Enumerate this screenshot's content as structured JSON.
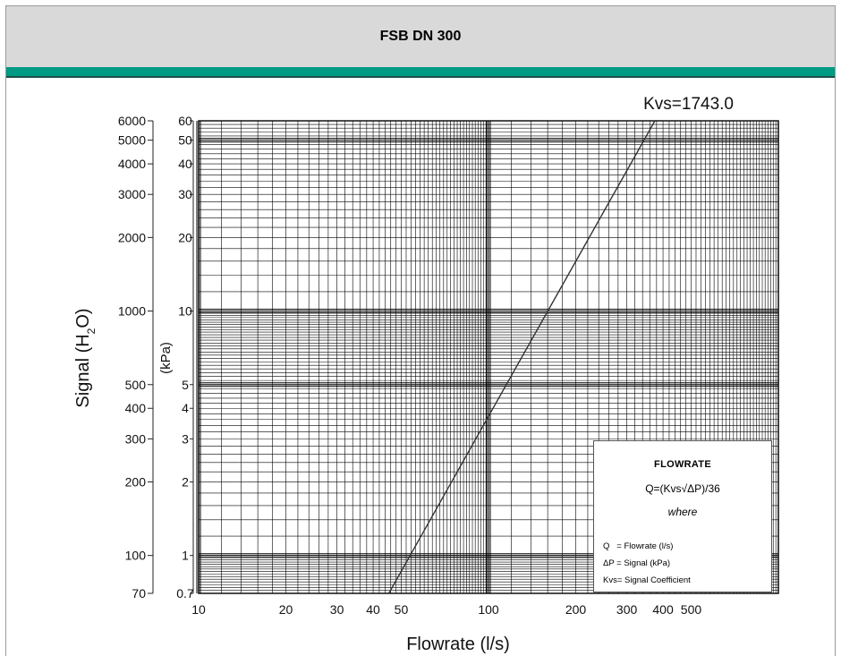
{
  "header": {
    "title": "FSB DN 300"
  },
  "colors": {
    "accent": "#009a84",
    "header_bg": "#d9d9d9",
    "grid": "#000000"
  },
  "chart_data": {
    "type": "line",
    "title": "",
    "annotation": "Kvs=1743.0",
    "xlabel": "Flowrate (l/s)",
    "ylabel_outer": "Signal (H2O)",
    "ylabel_inner": "(kPa)",
    "x_scale": "log",
    "y_scale": "log",
    "xlim": [
      10,
      1000
    ],
    "ylim_kpa": [
      0.7,
      60
    ],
    "grid": true,
    "x_ticks": [
      {
        "value": 10,
        "label": "10"
      },
      {
        "value": 20,
        "label": "20"
      },
      {
        "value": 30,
        "label": "30"
      },
      {
        "value": 40,
        "label": "40"
      },
      {
        "value": 50,
        "label": "50"
      },
      {
        "value": 100,
        "label": "100"
      },
      {
        "value": 200,
        "label": "200"
      },
      {
        "value": 300,
        "label": "300"
      },
      {
        "value": 400,
        "label": "400"
      },
      {
        "value": 500,
        "label": "500"
      }
    ],
    "y_ticks_kpa": [
      {
        "value": 0.7,
        "label": "0.7"
      },
      {
        "value": 1,
        "label": "1"
      },
      {
        "value": 2,
        "label": "2"
      },
      {
        "value": 3,
        "label": "3"
      },
      {
        "value": 4,
        "label": "4"
      },
      {
        "value": 5,
        "label": "5"
      },
      {
        "value": 10,
        "label": "10"
      },
      {
        "value": 20,
        "label": "20"
      },
      {
        "value": 30,
        "label": "30"
      },
      {
        "value": 40,
        "label": "40"
      },
      {
        "value": 50,
        "label": "50"
      },
      {
        "value": 60,
        "label": "60"
      }
    ],
    "y_ticks_h2o": [
      {
        "value": 70,
        "label": "70"
      },
      {
        "value": 100,
        "label": "100"
      },
      {
        "value": 200,
        "label": "200"
      },
      {
        "value": 300,
        "label": "300"
      },
      {
        "value": 400,
        "label": "400"
      },
      {
        "value": 500,
        "label": "500"
      },
      {
        "value": 1000,
        "label": "1000"
      },
      {
        "value": 2000,
        "label": "2000"
      },
      {
        "value": 3000,
        "label": "3000"
      },
      {
        "value": 4000,
        "label": "4000"
      },
      {
        "value": 5000,
        "label": "5000"
      },
      {
        "value": 6000,
        "label": "6000"
      }
    ],
    "series": [
      {
        "x": [
          45.3,
          375
        ],
        "y": [
          0.7,
          60
        ]
      }
    ]
  },
  "legend": {
    "title": "FLOWRATE",
    "formula": "Q=(Kvs√ΔP)/36",
    "where": "where",
    "definitions": [
      "Q   = Flowrate (l/s)",
      "ΔP = Signal (kPa)",
      "Kvs= Signal Coefficient"
    ]
  }
}
